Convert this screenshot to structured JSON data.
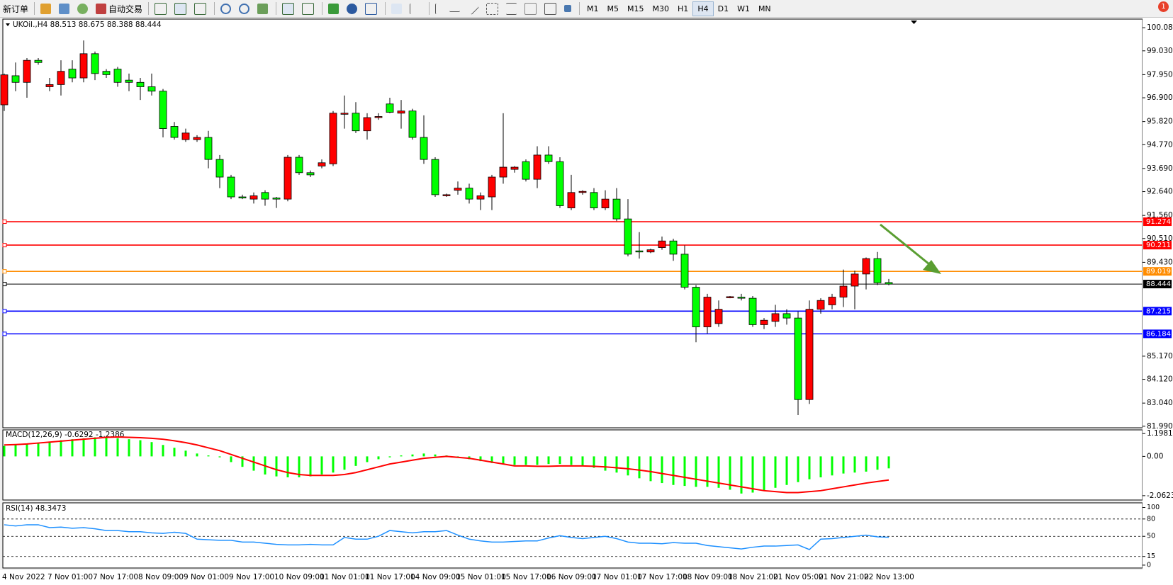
{
  "toolbar": {
    "new_order": "新订单",
    "auto_trading": "自动交易",
    "timeframes": [
      "M1",
      "M5",
      "M15",
      "M30",
      "H1",
      "H4",
      "D1",
      "W1",
      "MN"
    ],
    "active_timeframe": "H4",
    "notifications": "1"
  },
  "chart_data": [
    {
      "type": "candlestick",
      "title": "UKOil.,H4 88.513 88.675 88.388 88.444",
      "categories": [
        "4 Nov 2022",
        null,
        null,
        null,
        "7 Nov 01:00",
        null,
        null,
        null,
        "7 Nov 17:00",
        null,
        null,
        null,
        "8 Nov 09:00",
        null,
        null,
        null,
        "9 Nov 01:00",
        null,
        null,
        null,
        "9 Nov 17:00",
        null,
        null,
        null,
        "10 Nov 09:00",
        null,
        null,
        null,
        "11 Nov 01:00",
        null,
        null,
        null,
        "11 Nov 17:00",
        null,
        null,
        null,
        "14 Nov 09:00",
        null,
        null,
        null,
        "15 Nov 01:00",
        null,
        null,
        null,
        "15 Nov 17:00",
        null,
        null,
        null,
        "16 Nov 09:00",
        null,
        null,
        null,
        "17 Nov 01:00",
        null,
        null,
        null,
        "17 Nov 17:00",
        null,
        null,
        null,
        "18 Nov 09:00",
        null,
        null,
        null,
        "18 Nov 21:00",
        null,
        null,
        null,
        "21 Nov 05:00",
        null,
        null,
        null,
        "21 Nov 21:00",
        null,
        null,
        null,
        "22 Nov 13:00",
        null,
        null
      ],
      "open": [
        96.58,
        97.9,
        97.6,
        98.6,
        97.4,
        97.5,
        98.2,
        97.8,
        98.9,
        98.1,
        98.2,
        97.7,
        97.6,
        97.4,
        97.2,
        95.6,
        95.0,
        95.0,
        95.1,
        94.1,
        93.3,
        92.4,
        92.3,
        92.6,
        92.35,
        92.3,
        94.2,
        93.5,
        93.8,
        93.9,
        96.15,
        96.2,
        95.4,
        96.0,
        96.62,
        96.2,
        96.3,
        95.1,
        94.1,
        92.45,
        92.7,
        92.8,
        92.3,
        92.4,
        93.3,
        93.65,
        94.0,
        93.2,
        94.3,
        94.0,
        91.9,
        92.6,
        92.6,
        91.9,
        92.3,
        91.4,
        89.95,
        89.9,
        90.1,
        90.4,
        89.8,
        88.3,
        86.5,
        86.65,
        87.82,
        87.85,
        87.8,
        86.6,
        86.75,
        87.1,
        86.9,
        83.2,
        87.3,
        87.5,
        87.85,
        88.35,
        88.9,
        89.6,
        88.513
      ],
      "high": [
        98.0,
        98.5,
        98.7,
        98.7,
        97.8,
        98.6,
        98.6,
        99.5,
        99.0,
        98.2,
        98.3,
        98.0,
        97.8,
        98.0,
        97.3,
        95.8,
        95.5,
        95.2,
        95.4,
        94.3,
        93.4,
        92.5,
        92.6,
        92.7,
        92.4,
        94.3,
        94.3,
        93.6,
        94.1,
        96.3,
        97.0,
        96.7,
        96.2,
        96.2,
        96.9,
        96.8,
        96.4,
        96.1,
        94.2,
        92.55,
        93.1,
        93.0,
        92.6,
        93.4,
        96.2,
        93.8,
        94.1,
        94.7,
        94.7,
        94.2,
        93.4,
        92.7,
        92.8,
        92.7,
        92.8,
        92.3,
        90.8,
        90.05,
        90.6,
        90.5,
        90.2,
        88.4,
        88.0,
        87.7,
        87.9,
        88.0,
        87.9,
        86.9,
        87.5,
        87.3,
        87.2,
        87.7,
        87.8,
        88.0,
        89.1,
        89.05,
        89.65,
        89.9,
        88.675
      ],
      "low": [
        96.3,
        97.2,
        96.9,
        98.4,
        97.2,
        97.0,
        97.6,
        97.6,
        97.7,
        97.8,
        97.4,
        97.2,
        96.8,
        97.0,
        95.1,
        95.0,
        94.9,
        94.9,
        93.7,
        92.8,
        92.3,
        92.3,
        92.1,
        92.0,
        91.9,
        92.2,
        93.4,
        93.3,
        93.7,
        93.8,
        95.5,
        95.3,
        95.0,
        95.9,
        96.2,
        95.5,
        95.0,
        93.9,
        92.4,
        92.4,
        92.5,
        92.1,
        91.8,
        91.8,
        93.0,
        93.5,
        93.1,
        92.8,
        93.9,
        91.9,
        91.8,
        92.5,
        91.8,
        91.8,
        91.3,
        89.7,
        89.6,
        89.85,
        90.0,
        89.5,
        88.2,
        85.8,
        86.2,
        86.5,
        87.8,
        87.7,
        86.5,
        86.4,
        86.5,
        86.6,
        82.5,
        83.0,
        87.1,
        87.3,
        87.4,
        87.3,
        88.2,
        88.4,
        88.388
      ],
      "close": [
        97.94,
        97.6,
        98.6,
        98.5,
        97.5,
        98.1,
        97.8,
        98.9,
        98.0,
        97.95,
        97.6,
        97.6,
        97.4,
        97.2,
        95.5,
        95.1,
        95.3,
        95.1,
        94.1,
        93.3,
        92.4,
        92.35,
        92.45,
        92.3,
        92.3,
        94.2,
        93.5,
        93.4,
        93.95,
        96.2,
        96.2,
        95.4,
        96.0,
        96.05,
        96.24,
        96.3,
        95.1,
        94.1,
        92.5,
        92.5,
        92.8,
        92.3,
        92.45,
        93.3,
        93.75,
        93.75,
        93.2,
        94.3,
        94.0,
        92.0,
        92.6,
        92.65,
        91.9,
        92.3,
        91.4,
        89.8,
        89.9,
        90.0,
        90.4,
        89.8,
        88.3,
        86.5,
        87.85,
        87.3,
        87.87,
        87.8,
        86.6,
        86.8,
        87.1,
        86.9,
        83.2,
        87.3,
        87.7,
        87.85,
        88.35,
        88.9,
        89.6,
        88.5,
        88.444
      ],
      "up_color": "#ff0000",
      "down_color": "#00ff00",
      "ylim": [
        81.92,
        100.47
      ],
      "yticks": [
        {
          "value": 100.08,
          "label": "100.080"
        },
        {
          "value": 99.03,
          "label": "99.030"
        },
        {
          "value": 97.95,
          "label": "97.950"
        },
        {
          "value": 96.9,
          "label": "96.900"
        },
        {
          "value": 95.82,
          "label": "95.820"
        },
        {
          "value": 94.77,
          "label": "94.770"
        },
        {
          "value": 93.69,
          "label": "93.690"
        },
        {
          "value": 92.64,
          "label": "92.640"
        },
        {
          "value": 91.56,
          "label": "91.560"
        },
        {
          "value": 90.51,
          "label": "90.510"
        },
        {
          "value": 89.43,
          "label": "89.430"
        },
        {
          "value": 85.17,
          "label": "85.170"
        },
        {
          "value": 84.12,
          "label": "84.120"
        },
        {
          "value": 83.04,
          "label": "83.040"
        },
        {
          "value": 81.99,
          "label": "81.990"
        }
      ],
      "levels": [
        {
          "value": 91.274,
          "color": "#ff0000"
        },
        {
          "value": 90.211,
          "color": "#ff0000"
        },
        {
          "value": 89.019,
          "color": "#ff8c00"
        },
        {
          "value": 88.444,
          "color": "#000000"
        },
        {
          "value": 87.215,
          "color": "#0000ff"
        },
        {
          "value": 86.184,
          "color": "#0000ff"
        }
      ]
    },
    {
      "type": "macd",
      "title": "MACD(12,26,9) -0.6292 -1.2386",
      "series": [
        {
          "kind": "histogram",
          "color": "#00ff00",
          "values": [
            0.55,
            0.6,
            0.65,
            0.7,
            0.75,
            0.85,
            0.9,
            0.95,
            1.0,
            1.0,
            0.95,
            0.9,
            0.85,
            0.75,
            0.6,
            0.45,
            0.3,
            0.15,
            0.05,
            -0.05,
            -0.3,
            -0.55,
            -0.75,
            -0.95,
            -1.05,
            -1.1,
            -1.1,
            -1.05,
            -0.95,
            -0.85,
            -0.7,
            -0.5,
            -0.3,
            -0.15,
            -0.05,
            0.05,
            0.1,
            0.15,
            0.1,
            0.05,
            -0.05,
            -0.15,
            -0.25,
            -0.35,
            -0.4,
            -0.45,
            -0.45,
            -0.45,
            -0.4,
            -0.4,
            -0.45,
            -0.5,
            -0.6,
            -0.75,
            -0.85,
            -1.0,
            -1.15,
            -1.3,
            -1.4,
            -1.5,
            -1.55,
            -1.6,
            -1.6,
            -1.65,
            -1.75,
            -1.95,
            -1.9,
            -1.8,
            -1.65,
            -1.5,
            -1.35,
            -1.2,
            -1.1,
            -1.0,
            -0.9,
            -0.85,
            -0.8,
            -0.7,
            -0.6292
          ]
        },
        {
          "kind": "line",
          "color": "#ff0000",
          "values": [
            0.6,
            0.62,
            0.65,
            0.7,
            0.75,
            0.8,
            0.85,
            0.9,
            0.95,
            1.0,
            1.02,
            1.0,
            0.98,
            0.95,
            0.9,
            0.82,
            0.72,
            0.6,
            0.45,
            0.3,
            0.1,
            -0.1,
            -0.3,
            -0.5,
            -0.7,
            -0.85,
            -0.95,
            -1.0,
            -1.0,
            -1.0,
            -0.95,
            -0.85,
            -0.7,
            -0.55,
            -0.4,
            -0.3,
            -0.2,
            -0.1,
            -0.05,
            0.0,
            -0.05,
            -0.1,
            -0.2,
            -0.3,
            -0.4,
            -0.5,
            -0.5,
            -0.52,
            -0.52,
            -0.5,
            -0.5,
            -0.5,
            -0.52,
            -0.55,
            -0.6,
            -0.65,
            -0.72,
            -0.8,
            -0.9,
            -1.0,
            -1.1,
            -1.2,
            -1.3,
            -1.4,
            -1.5,
            -1.6,
            -1.7,
            -1.8,
            -1.85,
            -1.9,
            -1.9,
            -1.85,
            -1.8,
            -1.7,
            -1.6,
            -1.5,
            -1.4,
            -1.32,
            -1.2386
          ]
        }
      ],
      "ylim": [
        -2.29,
        1.39
      ],
      "yticks": [
        1.1981,
        {
          "value": 0,
          "label": "0.00"
        },
        -2.0623
      ]
    },
    {
      "type": "line",
      "title": "RSI(14) 48.3473",
      "color": "#1e90ff",
      "values": [
        70,
        68,
        70,
        70,
        65,
        66,
        64,
        65,
        63,
        60,
        60,
        58,
        58,
        56,
        55,
        57,
        55,
        45,
        44,
        43,
        43,
        40,
        40,
        38,
        36,
        35,
        35,
        36,
        35,
        35,
        48,
        45,
        45,
        50,
        60,
        58,
        56,
        58,
        58,
        60,
        52,
        45,
        42,
        40,
        40,
        41,
        42,
        42,
        47,
        51,
        48,
        46,
        48,
        50,
        46,
        40,
        38,
        38,
        37,
        39,
        38,
        38,
        34,
        32,
        30,
        28,
        31,
        33,
        33,
        34,
        35,
        27,
        45,
        46,
        48,
        50,
        52,
        49,
        48.3473
      ],
      "ylim": [
        -5,
        108
      ],
      "yticks": [
        100,
        80,
        50,
        15,
        0
      ],
      "levels": [
        80,
        50,
        15
      ]
    }
  ]
}
